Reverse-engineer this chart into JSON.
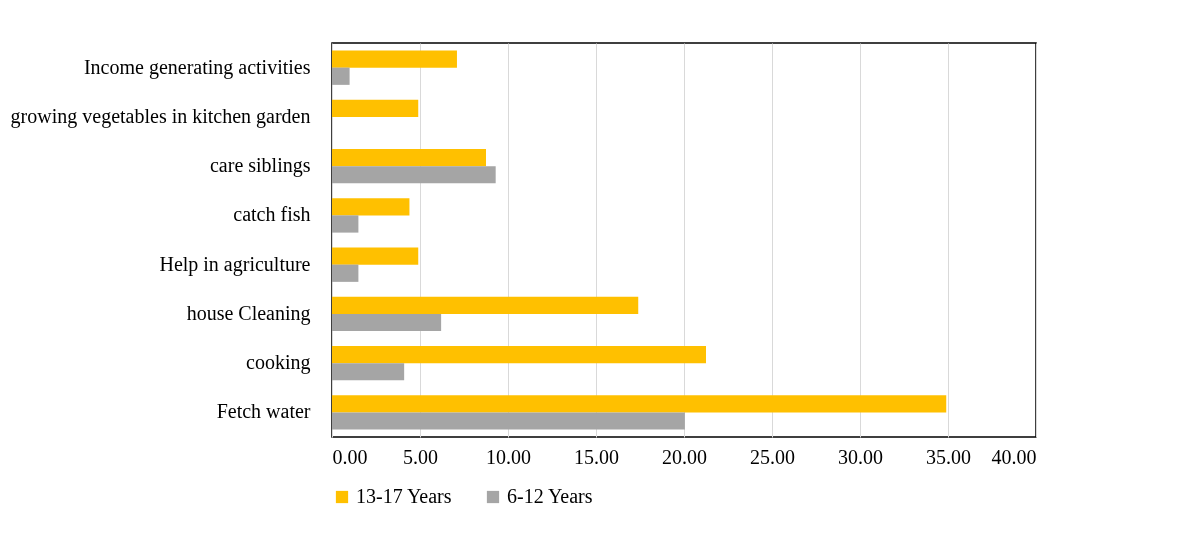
{
  "chart_data": {
    "type": "bar",
    "orientation": "horizontal",
    "categories": [
      "Income generating activities",
      "growing vegetables in kitchen garden",
      "care siblings",
      "catch fish",
      "Help in agriculture",
      "house Cleaning",
      "cooking",
      "Fetch water"
    ],
    "series": [
      {
        "name": "13-17 Years",
        "color": "#ffc000",
        "values": [
          7.1,
          4.9,
          8.75,
          4.4,
          4.9,
          17.4,
          21.25,
          34.9
        ]
      },
      {
        "name": "6-12 Years",
        "color": "#a5a5a5",
        "values": [
          1.0,
          null,
          9.3,
          1.5,
          1.5,
          6.2,
          4.1,
          20.05
        ]
      }
    ],
    "xlim": [
      0,
      40
    ],
    "xticks": [
      {
        "value": 0,
        "label": "0.00"
      },
      {
        "value": 5,
        "label": "5.00"
      },
      {
        "value": 10,
        "label": "10.00"
      },
      {
        "value": 15,
        "label": "15.00"
      },
      {
        "value": 20,
        "label": "20.00"
      },
      {
        "value": 25,
        "label": "25.00"
      },
      {
        "value": 30,
        "label": "30.00"
      },
      {
        "value": 35,
        "label": "35.00"
      },
      {
        "value": 40,
        "label": "40.00"
      }
    ],
    "grid": "x",
    "legend": "bottom"
  }
}
